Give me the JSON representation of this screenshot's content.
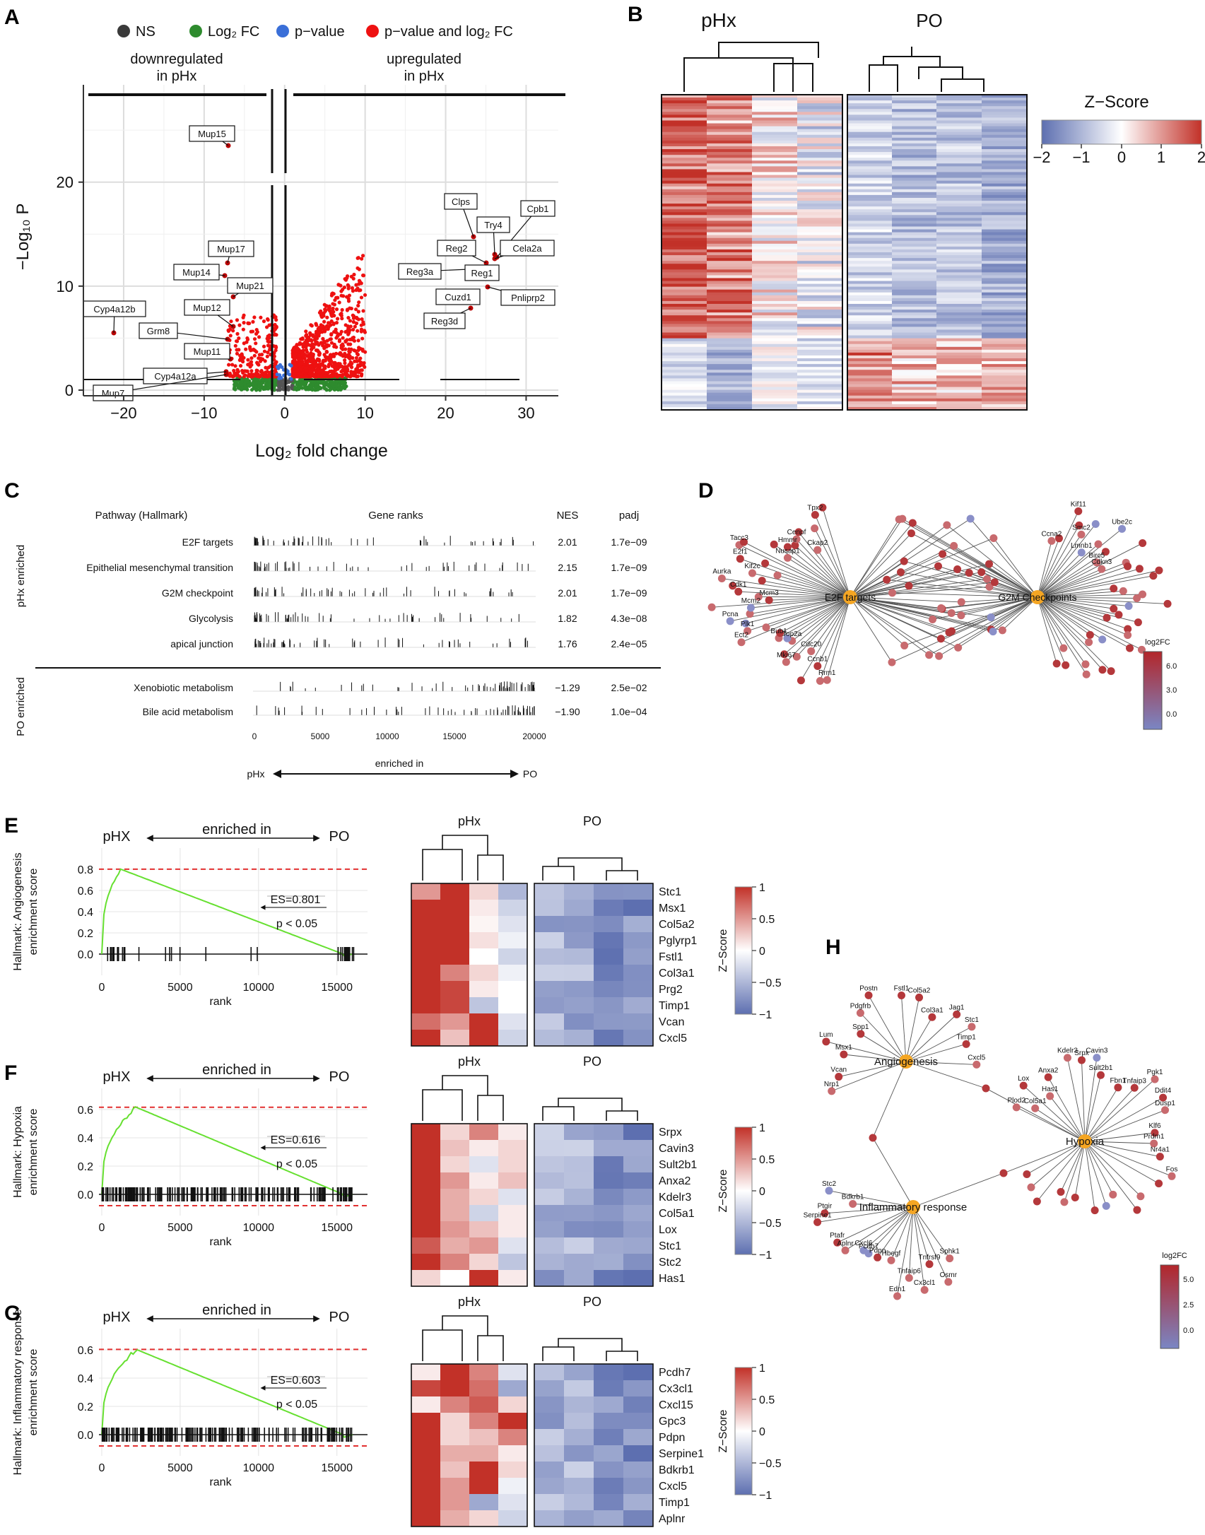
{
  "panel_labels": [
    "A",
    "B",
    "C",
    "D",
    "E",
    "F",
    "G",
    "H"
  ],
  "volcano": {
    "legend": [
      "NS",
      "Log₂ FC",
      "p−value",
      "p−value and log₂ FC"
    ],
    "legend_colors": [
      "#3a3a3a",
      "#2e8b2e",
      "#3a6fd8",
      "#ee1111"
    ],
    "down_label_1": "downregulated",
    "down_label_2": "in pHx",
    "up_label_1": "upregulated",
    "up_label_2": "in pHx",
    "ylabel": "−Log₁₀ P",
    "xlabel": "Log₂ fold change",
    "xticks": [
      "−20",
      "−10",
      "0",
      "10",
      "20",
      "30"
    ],
    "yticks": [
      "0",
      "10",
      "20"
    ],
    "genes_left": [
      "Mup15",
      "Mup17",
      "Mup14",
      "Mup21",
      "Mup12",
      "Cyp4a12b",
      "Grm8",
      "Mup11",
      "Cyp4a12a",
      "Mup7"
    ],
    "genes_right": [
      "Clps",
      "Cpb1",
      "Try4",
      "Cela2a",
      "Reg2",
      "Reg3a",
      "Reg1",
      "Cuzd1",
      "Pnliprp2",
      "Reg3d"
    ]
  },
  "heatmap_B": {
    "group1": "pHx",
    "group2": "PO",
    "legend_title": "Z−Score",
    "legend_ticks": [
      "−2",
      "−1",
      "0",
      "1",
      "2"
    ]
  },
  "gsea_table": {
    "col_pathway": "Pathway (Hallmark)",
    "col_ranks": "Gene ranks",
    "col_nes": "NES",
    "col_padj": "padj",
    "group_top": "pHx enriched",
    "group_bottom": "PO enriched",
    "rows_top": [
      {
        "name": "E2F targets",
        "nes": "2.01",
        "padj": "1.7e−09"
      },
      {
        "name": "Epithelial mesenchymal transition",
        "nes": "2.15",
        "padj": "1.7e−09"
      },
      {
        "name": "G2M checkpoint",
        "nes": "2.01",
        "padj": "1.7e−09"
      },
      {
        "name": "Glycolysis",
        "nes": "1.82",
        "padj": "4.3e−08"
      },
      {
        "name": "apical junction",
        "nes": "1.76",
        "padj": "2.4e−05"
      }
    ],
    "rows_bottom": [
      {
        "name": "Xenobiotic metabolism",
        "nes": "−1.29",
        "padj": "2.5e−02"
      },
      {
        "name": "Bile acid metabolism",
        "nes": "−1.90",
        "padj": "1.0e−04"
      }
    ],
    "axis_ticks": [
      "0",
      "5000",
      "10000",
      "15000",
      "20000"
    ],
    "arrow_left": "pHx",
    "arrow_mid": "enriched in",
    "arrow_right": "PO"
  },
  "network_D": {
    "hub1": "E2F targets",
    "hub2": "G2M Checkpoints",
    "legend_title": "log2FC",
    "legend_ticks": [
      "6.0",
      "3.0",
      "0.0"
    ],
    "genes": [
      "Rrm1",
      "Ccnb1",
      "Cdc20",
      "Mki67",
      "Top2a",
      "Bub1",
      "Ect2",
      "Plk1",
      "Pcna",
      "Mcm2",
      "Mcm3",
      "Cdk1",
      "Aurka",
      "Kif2c",
      "E2f1",
      "Tacc3",
      "Nusap1",
      "Hmmr",
      "Cenpf",
      "Ckap2",
      "Tpx2",
      "Ccna2",
      "Kif11",
      "Smc2",
      "Lmnb1",
      "Ube2c",
      "Birc5",
      "Cdkn3"
    ]
  },
  "gsea_E": {
    "arrow_left": "pHX",
    "arrow_mid": "enriched in",
    "arrow_right": "PO",
    "ylabel1": "Hallmark: Angiogenesis",
    "ylabel2": "enrichment score",
    "xlabel": "rank",
    "es": "ES=0.801",
    "pval": "p < 0.05",
    "yticks": [
      "0.0",
      "0.2",
      "0.4",
      "0.6",
      "0.8"
    ],
    "xticks": [
      "0",
      "5000",
      "10000",
      "15000"
    ],
    "heat_g1": "pHx",
    "heat_g2": "PO",
    "genes": [
      "Stc1",
      "Msx1",
      "Col5a2",
      "Pglyrp1",
      "Fstl1",
      "Col3a1",
      "Prg2",
      "Timp1",
      "Vcan",
      "Cxcl5"
    ],
    "zlabel": "Z−Score",
    "zticks": [
      "1",
      "0.5",
      "0",
      "−0.5",
      "−1"
    ]
  },
  "gsea_F": {
    "arrow_left": "pHX",
    "arrow_mid": "enriched in",
    "arrow_right": "PO",
    "ylabel1": "Hallmark: Hypoxia",
    "ylabel2": "enrichment score",
    "xlabel": "rank",
    "es": "ES=0.616",
    "pval": "p < 0.05",
    "yticks": [
      "0.0",
      "0.2",
      "0.4",
      "0.6"
    ],
    "xticks": [
      "0",
      "5000",
      "10000",
      "15000"
    ],
    "heat_g1": "pHx",
    "heat_g2": "PO",
    "genes": [
      "Srpx",
      "Cavin3",
      "Sult2b1",
      "Anxa2",
      "Kdelr3",
      "Col5a1",
      "Lox",
      "Stc1",
      "Stc2",
      "Has1"
    ],
    "zlabel": "Z−Score",
    "zticks": [
      "1",
      "0.5",
      "0",
      "−0.5",
      "−1"
    ]
  },
  "gsea_G": {
    "arrow_left": "pHX",
    "arrow_mid": "enriched in",
    "arrow_right": "PO",
    "ylabel1": "Hallmark: Inflammatory response",
    "ylabel2": "enrichment score",
    "xlabel": "rank",
    "es": "ES=0.603",
    "pval": "p < 0.05",
    "yticks": [
      "0.0",
      "0.2",
      "0.4",
      "0.6"
    ],
    "xticks": [
      "0",
      "5000",
      "10000",
      "15000"
    ],
    "heat_g1": "pHx",
    "heat_g2": "PO",
    "genes": [
      "Pcdh7",
      "Cx3cl1",
      "Cxcl15",
      "Gpc3",
      "Pdpn",
      "Serpine1",
      "Bdkrb1",
      "Cxcl5",
      "Timp1",
      "Aplnr"
    ],
    "zlabel": "Z−Score",
    "zticks": [
      "1",
      "0.5",
      "0",
      "−0.5",
      "−1"
    ]
  },
  "network_H": {
    "hub1": "Angiogenesis",
    "hub2": "Hypoxia",
    "hub3": "Inflammatory response",
    "legend_title": "log2FC",
    "legend_ticks": [
      "5.0",
      "2.5",
      "0.0"
    ],
    "genes": [
      "Nrp1",
      "Vcan",
      "Msx1",
      "Lum",
      "Spp1",
      "Pdgfrb",
      "Postn",
      "Fstl1",
      "Col5a2",
      "Col3a1",
      "Jag1",
      "Stc1",
      "Timp1",
      "Cxcl5",
      "Sphk1",
      "Osmr",
      "Tnfrsf9",
      "Cx3cl1",
      "Tnfaip6",
      "Edn1",
      "Hbegf",
      "Pdpn",
      "Pcdh7",
      "Cxcl6",
      "Aplnr",
      "Ptafr",
      "Serpine1",
      "Ptgir",
      "Bdkrb1",
      "Stc2",
      "Plod2",
      "Col5a1",
      "Lox",
      "Has1",
      "Anxa2",
      "Kdelr3",
      "Srpx",
      "Cavin3",
      "Sult2b1",
      "Fbn1",
      "Tnfaip3",
      "Pgk1",
      "Ddit4",
      "Dusp1",
      "Klf6",
      "Prdm1",
      "Nr4a1",
      "Fos"
    ]
  }
}
